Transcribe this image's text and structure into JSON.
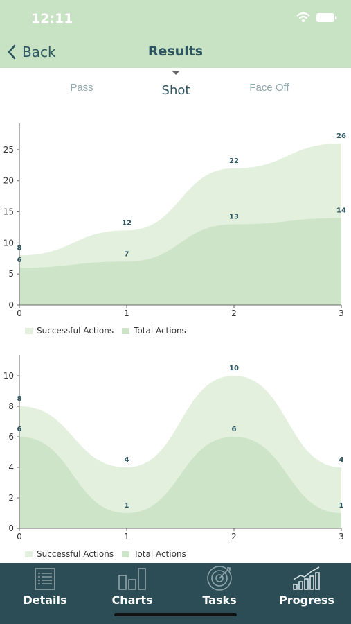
{
  "status_bar": {
    "time": "12:11"
  },
  "nav": {
    "back_label": "Back",
    "title": "Results"
  },
  "tabs": [
    {
      "label": "Pass",
      "active": false
    },
    {
      "label": "Shot",
      "active": true
    },
    {
      "label": "Face Off",
      "active": false
    }
  ],
  "colors": {
    "header": "#c8e2c4",
    "light_area": "#e2f0dd",
    "dark_area": "#cde4c8",
    "tabbar": "#2c4d56",
    "label": "#2c5560"
  },
  "chart_data": [
    {
      "type": "area",
      "x": [
        0,
        1,
        2,
        3
      ],
      "ylim": [
        0,
        28
      ],
      "yticks": [
        0,
        5,
        10,
        15,
        20,
        25
      ],
      "series": [
        {
          "name": "Successful Actions",
          "values": [
            6,
            7,
            13,
            14
          ]
        },
        {
          "name": "Total Actions",
          "values": [
            8,
            12,
            22,
            26
          ]
        }
      ],
      "legend": "bottom-left",
      "grid": false
    },
    {
      "type": "area",
      "x": [
        0,
        1,
        2,
        3
      ],
      "ylim": [
        0,
        11
      ],
      "yticks": [
        0,
        2,
        4,
        6,
        8,
        10
      ],
      "series": [
        {
          "name": "Successful Actions",
          "values": [
            6,
            1,
            6,
            1
          ]
        },
        {
          "name": "Total Actions",
          "values": [
            8,
            4,
            10,
            4
          ]
        }
      ],
      "legend": "bottom-left",
      "grid": false
    }
  ],
  "tabbar": [
    {
      "label": "Details",
      "icon": "document-list-icon"
    },
    {
      "label": "Charts",
      "icon": "bar-chart-icon"
    },
    {
      "label": "Tasks",
      "icon": "target-icon"
    },
    {
      "label": "Progress",
      "icon": "progress-chart-icon"
    }
  ]
}
